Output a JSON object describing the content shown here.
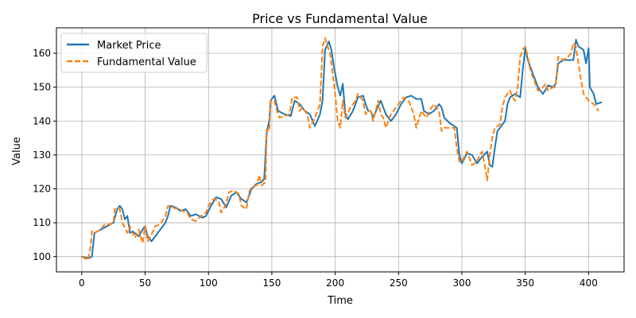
{
  "chart_data": {
    "type": "line",
    "title": "Price vs Fundamental Value",
    "xlabel": "Time",
    "ylabel": "Value",
    "xlim": [
      -20,
      428
    ],
    "ylim": [
      95.5,
      167.5
    ],
    "xticks": [
      0,
      50,
      100,
      150,
      200,
      250,
      300,
      350,
      400
    ],
    "yticks": [
      100,
      110,
      120,
      130,
      140,
      150,
      160
    ],
    "grid": true,
    "legend_position": "top-left",
    "series": [
      {
        "name": "Market Price",
        "color": "#1f77b4",
        "style": "solid",
        "points": [
          [
            0,
            100
          ],
          [
            5,
            99.5
          ],
          [
            8,
            100
          ],
          [
            10,
            107
          ],
          [
            15,
            108
          ],
          [
            20,
            109
          ],
          [
            25,
            110
          ],
          [
            28,
            114
          ],
          [
            30,
            115
          ],
          [
            32,
            114
          ],
          [
            34,
            111
          ],
          [
            36,
            112
          ],
          [
            38,
            107
          ],
          [
            40,
            107.5
          ],
          [
            45,
            106
          ],
          [
            48,
            108
          ],
          [
            50,
            109
          ],
          [
            52,
            106
          ],
          [
            55,
            104.5
          ],
          [
            58,
            106
          ],
          [
            62,
            108
          ],
          [
            66,
            110
          ],
          [
            68,
            112
          ],
          [
            70,
            115
          ],
          [
            74,
            114.5
          ],
          [
            78,
            113.5
          ],
          [
            82,
            114
          ],
          [
            86,
            112
          ],
          [
            90,
            112.5
          ],
          [
            95,
            111.5
          ],
          [
            98,
            112
          ],
          [
            102,
            115
          ],
          [
            106,
            117.5
          ],
          [
            110,
            117
          ],
          [
            114,
            114.5
          ],
          [
            118,
            118
          ],
          [
            122,
            119
          ],
          [
            126,
            117
          ],
          [
            130,
            116
          ],
          [
            134,
            120
          ],
          [
            138,
            121.5
          ],
          [
            142,
            122
          ],
          [
            144,
            123
          ],
          [
            146,
            137
          ],
          [
            148,
            140
          ],
          [
            149,
            146
          ],
          [
            152,
            147.5
          ],
          [
            155,
            143
          ],
          [
            160,
            142
          ],
          [
            165,
            141.5
          ],
          [
            168,
            146
          ],
          [
            172,
            145
          ],
          [
            176,
            143
          ],
          [
            180,
            142
          ],
          [
            184,
            138.5
          ],
          [
            188,
            142
          ],
          [
            190,
            146
          ],
          [
            192,
            161
          ],
          [
            195,
            163.5
          ],
          [
            197,
            161
          ],
          [
            199,
            156
          ],
          [
            201,
            152
          ],
          [
            202,
            150
          ],
          [
            204,
            147.5
          ],
          [
            206,
            151
          ],
          [
            208,
            142
          ],
          [
            210,
            140.5
          ],
          [
            214,
            143
          ],
          [
            218,
            147
          ],
          [
            222,
            147.5
          ],
          [
            224,
            145
          ],
          [
            226,
            143
          ],
          [
            228,
            143
          ],
          [
            230,
            141
          ],
          [
            234,
            144.5
          ],
          [
            236,
            146
          ],
          [
            238,
            144
          ],
          [
            240,
            142
          ],
          [
            244,
            140
          ],
          [
            248,
            142
          ],
          [
            252,
            145
          ],
          [
            256,
            147
          ],
          [
            260,
            147.5
          ],
          [
            264,
            146.5
          ],
          [
            268,
            146.5
          ],
          [
            270,
            143
          ],
          [
            274,
            142
          ],
          [
            278,
            143
          ],
          [
            282,
            145
          ],
          [
            284,
            144
          ],
          [
            286,
            141
          ],
          [
            290,
            139.5
          ],
          [
            294,
            138.5
          ],
          [
            296,
            138
          ],
          [
            298,
            130
          ],
          [
            300,
            127.5
          ],
          [
            304,
            130.5
          ],
          [
            308,
            130
          ],
          [
            312,
            127.5
          ],
          [
            316,
            129.5
          ],
          [
            320,
            131
          ],
          [
            322,
            127
          ],
          [
            324,
            126.5
          ],
          [
            326,
            132
          ],
          [
            328,
            137
          ],
          [
            330,
            138
          ],
          [
            334,
            140
          ],
          [
            336,
            145
          ],
          [
            338,
            147
          ],
          [
            342,
            148
          ],
          [
            346,
            147
          ],
          [
            348,
            155
          ],
          [
            350,
            161.5
          ],
          [
            352,
            158
          ],
          [
            356,
            154
          ],
          [
            360,
            150
          ],
          [
            364,
            148
          ],
          [
            368,
            150.5
          ],
          [
            372,
            150
          ],
          [
            374,
            151
          ],
          [
            376,
            157
          ],
          [
            380,
            158
          ],
          [
            384,
            158
          ],
          [
            388,
            158
          ],
          [
            390,
            164
          ],
          [
            392,
            162
          ],
          [
            396,
            161
          ],
          [
            398,
            157
          ],
          [
            400,
            161.5
          ],
          [
            401,
            150
          ],
          [
            404,
            148
          ],
          [
            406,
            145
          ],
          [
            410,
            145.5
          ]
        ]
      },
      {
        "name": "Fundamental Value",
        "color": "#ff7f0e",
        "style": "dashed",
        "points": [
          [
            0,
            100
          ],
          [
            5,
            99
          ],
          [
            7,
            103
          ],
          [
            8,
            107.5
          ],
          [
            10,
            107
          ],
          [
            15,
            108
          ],
          [
            18,
            109.5
          ],
          [
            22,
            109.5
          ],
          [
            25,
            110
          ],
          [
            26,
            114
          ],
          [
            28,
            114.5
          ],
          [
            30,
            114
          ],
          [
            32,
            110
          ],
          [
            36,
            107
          ],
          [
            38,
            109
          ],
          [
            40,
            107
          ],
          [
            42,
            105.5
          ],
          [
            45,
            108
          ],
          [
            48,
            104
          ],
          [
            50,
            109
          ],
          [
            52,
            104.5
          ],
          [
            55,
            106.5
          ],
          [
            58,
            109
          ],
          [
            62,
            109.5
          ],
          [
            66,
            112
          ],
          [
            68,
            115
          ],
          [
            72,
            114.5
          ],
          [
            76,
            114
          ],
          [
            80,
            113.5
          ],
          [
            84,
            112.5
          ],
          [
            86,
            111
          ],
          [
            90,
            110.5
          ],
          [
            94,
            112
          ],
          [
            98,
            113
          ],
          [
            100,
            115
          ],
          [
            104,
            117
          ],
          [
            108,
            116.5
          ],
          [
            110,
            113
          ],
          [
            114,
            115.5
          ],
          [
            116,
            119
          ],
          [
            120,
            119.5
          ],
          [
            124,
            118.5
          ],
          [
            126,
            115
          ],
          [
            130,
            114
          ],
          [
            132,
            119
          ],
          [
            134,
            120.5
          ],
          [
            138,
            121
          ],
          [
            140,
            124
          ],
          [
            142,
            121
          ],
          [
            145,
            122
          ],
          [
            146,
            137.5
          ],
          [
            148,
            137
          ],
          [
            149,
            146
          ],
          [
            152,
            146
          ],
          [
            154,
            143
          ],
          [
            156,
            141
          ],
          [
            160,
            141.5
          ],
          [
            164,
            142
          ],
          [
            166,
            147
          ],
          [
            170,
            147
          ],
          [
            172,
            143
          ],
          [
            174,
            144
          ],
          [
            178,
            142
          ],
          [
            180,
            138
          ],
          [
            184,
            141
          ],
          [
            186,
            143
          ],
          [
            188,
            145
          ],
          [
            190,
            162
          ],
          [
            192,
            164.5
          ],
          [
            194,
            162
          ],
          [
            196,
            160
          ],
          [
            198,
            154
          ],
          [
            200,
            148
          ],
          [
            202,
            140
          ],
          [
            204,
            138
          ],
          [
            206,
            146
          ],
          [
            208,
            141
          ],
          [
            212,
            144
          ],
          [
            216,
            146
          ],
          [
            218,
            148
          ],
          [
            222,
            146
          ],
          [
            224,
            142
          ],
          [
            226,
            143
          ],
          [
            228,
            143
          ],
          [
            230,
            140
          ],
          [
            234,
            146
          ],
          [
            236,
            142
          ],
          [
            238,
            141
          ],
          [
            240,
            138
          ],
          [
            244,
            142
          ],
          [
            248,
            144
          ],
          [
            250,
            145
          ],
          [
            254,
            147
          ],
          [
            258,
            146
          ],
          [
            262,
            142
          ],
          [
            264,
            138
          ],
          [
            268,
            143
          ],
          [
            272,
            141
          ],
          [
            276,
            144
          ],
          [
            278,
            145
          ],
          [
            282,
            143
          ],
          [
            284,
            137
          ],
          [
            286,
            138
          ],
          [
            290,
            138
          ],
          [
            294,
            138
          ],
          [
            296,
            132
          ],
          [
            298,
            128
          ],
          [
            300,
            128
          ],
          [
            304,
            131
          ],
          [
            306,
            129
          ],
          [
            308,
            127
          ],
          [
            312,
            128
          ],
          [
            314,
            130
          ],
          [
            316,
            131
          ],
          [
            318,
            127
          ],
          [
            320,
            122.5
          ],
          [
            322,
            130
          ],
          [
            324,
            135
          ],
          [
            326,
            138
          ],
          [
            330,
            139
          ],
          [
            332,
            144
          ],
          [
            334,
            147
          ],
          [
            338,
            149
          ],
          [
            340,
            147
          ],
          [
            342,
            146
          ],
          [
            344,
            150
          ],
          [
            346,
            159
          ],
          [
            348,
            161
          ],
          [
            350,
            162
          ],
          [
            352,
            159
          ],
          [
            354,
            155
          ],
          [
            358,
            151
          ],
          [
            360,
            149
          ],
          [
            362,
            149
          ],
          [
            366,
            151
          ],
          [
            368,
            149
          ],
          [
            372,
            150
          ],
          [
            374,
            150
          ],
          [
            376,
            159
          ],
          [
            380,
            158
          ],
          [
            384,
            159
          ],
          [
            386,
            160
          ],
          [
            388,
            163
          ],
          [
            390,
            162
          ],
          [
            392,
            157
          ],
          [
            394,
            152
          ],
          [
            396,
            148
          ],
          [
            400,
            146
          ],
          [
            404,
            145
          ],
          [
            408,
            143
          ]
        ]
      }
    ]
  }
}
